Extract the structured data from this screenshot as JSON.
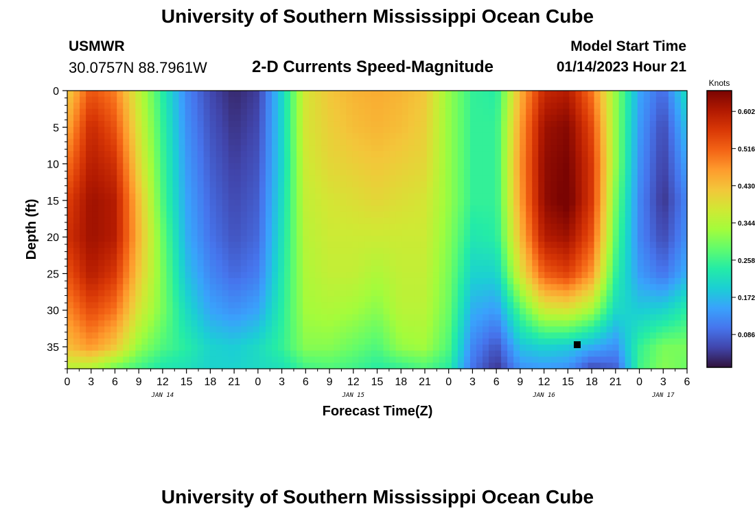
{
  "header": {
    "title": "University of Southern Mississippi Ocean Cube",
    "station": "USMWR",
    "coords": "30.0757N  88.7961W",
    "subtitle": "2-D Currents Speed-Magnitude",
    "model_start_label": "Model Start Time",
    "model_start_value": "01/14/2023 Hour 21"
  },
  "footer": {
    "title": "University of Southern Mississippi Ocean Cube"
  },
  "chart_data": {
    "type": "heatmap",
    "xlabel": "Forecast Time(Z)",
    "ylabel": "Depth (ft)",
    "x_tick_labels": [
      "0",
      "3",
      "6",
      "9",
      "12",
      "15",
      "18",
      "21",
      "0",
      "3",
      "6",
      "9",
      "12",
      "15",
      "18",
      "21",
      "0",
      "3",
      "6",
      "9",
      "12",
      "15",
      "18",
      "21",
      "0",
      "3",
      "6"
    ],
    "date_labels": [
      {
        "label": "JAN 14",
        "tick_index": 4
      },
      {
        "label": "JAN 15",
        "tick_index": 12
      },
      {
        "label": "JAN 16",
        "tick_index": 20
      },
      {
        "label": "JAN 17",
        "tick_index": 25
      }
    ],
    "y_ticks": [
      0,
      5,
      10,
      15,
      20,
      25,
      30,
      35
    ],
    "ylim": [
      0,
      38
    ],
    "colorbar": {
      "title": "Knots",
      "ticks": [
        "0.602",
        "0.516",
        "0.430",
        "0.344",
        "0.258",
        "0.172",
        "0.086"
      ],
      "range": [
        0.01,
        0.65
      ],
      "colors": [
        "#30123b",
        "#4145ab",
        "#4675ed",
        "#39a2fc",
        "#1bcfd4",
        "#24eca6",
        "#61fc6c",
        "#a4fc3b",
        "#d1e834",
        "#f3c63a",
        "#fe9b2d",
        "#f36315",
        "#d93806",
        "#b11901",
        "#7a0402"
      ]
    },
    "points": [
      {
        "x_hours": 0,
        "speeds_knots": [
          0.41,
          0.45,
          0.5,
          0.55,
          0.57,
          0.53,
          0.48,
          0.43,
          0.35
        ]
      },
      {
        "x_hours": 3,
        "speeds_knots": [
          0.53,
          0.58,
          0.6,
          0.62,
          0.62,
          0.6,
          0.54,
          0.47,
          0.34
        ]
      },
      {
        "x_hours": 6,
        "speeds_knots": [
          0.49,
          0.53,
          0.57,
          0.6,
          0.6,
          0.56,
          0.5,
          0.42,
          0.29
        ]
      },
      {
        "x_hours": 9,
        "speeds_knots": [
          0.36,
          0.38,
          0.4,
          0.43,
          0.44,
          0.42,
          0.38,
          0.32,
          0.26
        ]
      },
      {
        "x_hours": 12,
        "speeds_knots": [
          0.24,
          0.25,
          0.26,
          0.27,
          0.29,
          0.3,
          0.3,
          0.27,
          0.23
        ]
      },
      {
        "x_hours": 15,
        "speeds_knots": [
          0.12,
          0.13,
          0.14,
          0.15,
          0.16,
          0.18,
          0.21,
          0.24,
          0.22
        ]
      },
      {
        "x_hours": 18,
        "speeds_knots": [
          0.06,
          0.07,
          0.08,
          0.09,
          0.1,
          0.12,
          0.15,
          0.2,
          0.2
        ]
      },
      {
        "x_hours": 21,
        "speeds_knots": [
          0.03,
          0.04,
          0.05,
          0.06,
          0.07,
          0.09,
          0.13,
          0.19,
          0.2
        ]
      },
      {
        "x_hours": 24,
        "speeds_knots": [
          0.05,
          0.06,
          0.07,
          0.08,
          0.09,
          0.11,
          0.15,
          0.21,
          0.21
        ]
      },
      {
        "x_hours": 27,
        "speeds_knots": [
          0.2,
          0.2,
          0.2,
          0.21,
          0.22,
          0.23,
          0.24,
          0.25,
          0.22
        ]
      },
      {
        "x_hours": 30,
        "speeds_knots": [
          0.38,
          0.38,
          0.37,
          0.36,
          0.35,
          0.34,
          0.33,
          0.31,
          0.26
        ]
      },
      {
        "x_hours": 33,
        "speeds_knots": [
          0.42,
          0.41,
          0.4,
          0.38,
          0.37,
          0.36,
          0.34,
          0.31,
          0.27
        ]
      },
      {
        "x_hours": 36,
        "speeds_knots": [
          0.44,
          0.43,
          0.41,
          0.39,
          0.37,
          0.36,
          0.33,
          0.29,
          0.26
        ]
      },
      {
        "x_hours": 39,
        "speeds_knots": [
          0.45,
          0.44,
          0.42,
          0.4,
          0.37,
          0.34,
          0.31,
          0.27,
          0.24
        ]
      },
      {
        "x_hours": 42,
        "speeds_knots": [
          0.44,
          0.43,
          0.41,
          0.39,
          0.37,
          0.36,
          0.35,
          0.32,
          0.25
        ]
      },
      {
        "x_hours": 45,
        "speeds_knots": [
          0.42,
          0.41,
          0.4,
          0.38,
          0.37,
          0.36,
          0.35,
          0.33,
          0.27
        ]
      },
      {
        "x_hours": 48,
        "speeds_knots": [
          0.32,
          0.32,
          0.32,
          0.32,
          0.31,
          0.3,
          0.29,
          0.27,
          0.24
        ]
      },
      {
        "x_hours": 51,
        "speeds_knots": [
          0.25,
          0.25,
          0.25,
          0.25,
          0.23,
          0.2,
          0.16,
          0.12,
          0.1
        ]
      },
      {
        "x_hours": 54,
        "speeds_knots": [
          0.24,
          0.25,
          0.25,
          0.25,
          0.24,
          0.2,
          0.14,
          0.07,
          0.04
        ]
      },
      {
        "x_hours": 57,
        "speeds_knots": [
          0.44,
          0.46,
          0.47,
          0.46,
          0.43,
          0.38,
          0.27,
          0.18,
          0.13
        ]
      },
      {
        "x_hours": 60,
        "speeds_knots": [
          0.58,
          0.62,
          0.63,
          0.63,
          0.6,
          0.52,
          0.37,
          0.2,
          0.14
        ]
      },
      {
        "x_hours": 63,
        "speeds_knots": [
          0.6,
          0.64,
          0.65,
          0.66,
          0.62,
          0.55,
          0.38,
          0.19,
          0.13
        ]
      },
      {
        "x_hours": 66,
        "speeds_knots": [
          0.5,
          0.54,
          0.56,
          0.56,
          0.53,
          0.47,
          0.33,
          0.16,
          0.06
        ]
      },
      {
        "x_hours": 69,
        "speeds_knots": [
          0.32,
          0.32,
          0.32,
          0.3,
          0.28,
          0.25,
          0.21,
          0.13,
          0.08
        ]
      },
      {
        "x_hours": 72,
        "speeds_knots": [
          0.15,
          0.14,
          0.13,
          0.12,
          0.12,
          0.14,
          0.19,
          0.25,
          0.26
        ]
      },
      {
        "x_hours": 75,
        "speeds_knots": [
          0.09,
          0.06,
          0.05,
          0.04,
          0.06,
          0.1,
          0.2,
          0.3,
          0.31
        ]
      },
      {
        "x_hours": 78,
        "speeds_knots": [
          0.22,
          0.18,
          0.15,
          0.12,
          0.13,
          0.16,
          0.24,
          0.3,
          0.29
        ]
      }
    ],
    "depths_ft": [
      0,
      5,
      10,
      15,
      20,
      25,
      30,
      35,
      38
    ]
  }
}
